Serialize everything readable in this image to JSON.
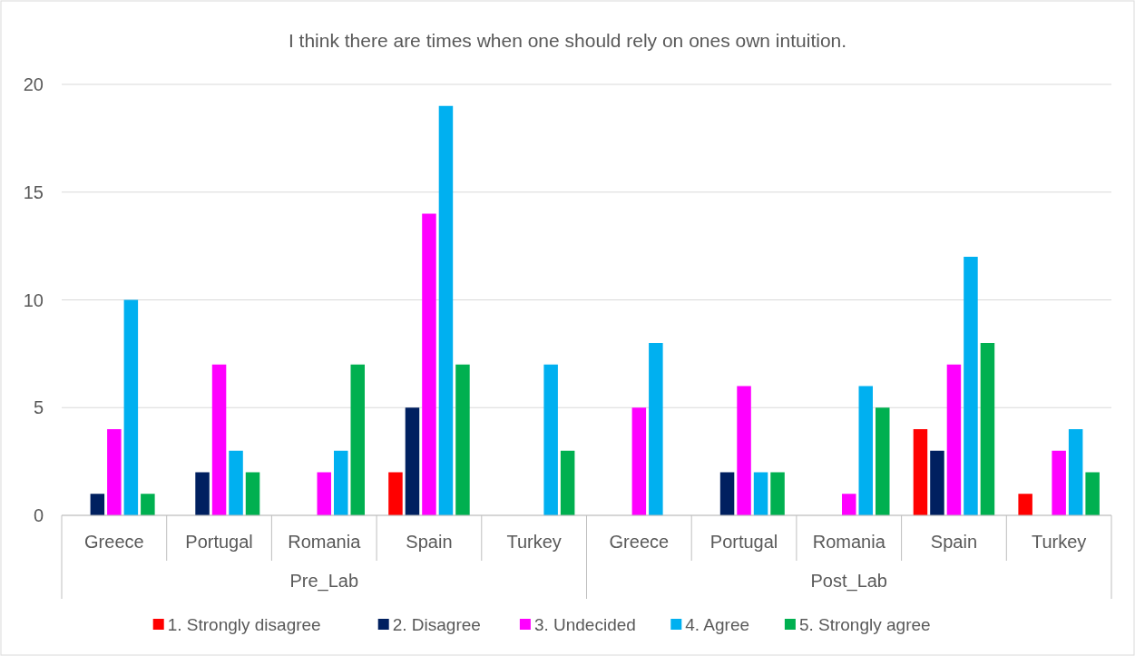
{
  "chart_data": {
    "type": "bar",
    "title": "I think there are times when one should rely on ones own intuition.",
    "categories": [
      "Greece",
      "Portugal",
      "Romania",
      "Spain",
      "Turkey",
      "Greece",
      "Portugal",
      "Romania",
      "Spain",
      "Turkey"
    ],
    "series": [
      {
        "name": "1. Strongly disagree",
        "color": "#ff0000",
        "values": [
          0,
          0,
          0,
          2,
          0,
          0,
          0,
          0,
          4,
          1
        ]
      },
      {
        "name": "2. Disagree",
        "color": "#002060",
        "values": [
          1,
          2,
          0,
          5,
          0,
          0,
          2,
          0,
          3,
          0
        ]
      },
      {
        "name": "3. Undecided",
        "color": "#ff00ff",
        "values": [
          4,
          7,
          2,
          14,
          0,
          5,
          6,
          1,
          7,
          3
        ]
      },
      {
        "name": "4. Agree",
        "color": "#00b0f0",
        "values": [
          10,
          3,
          3,
          19,
          7,
          8,
          2,
          6,
          12,
          4
        ]
      },
      {
        "name": "5. Strongly agree",
        "color": "#00b050",
        "values": [
          1,
          2,
          7,
          7,
          3,
          0,
          2,
          5,
          8,
          2
        ]
      }
    ],
    "annotations": [
      "Pre_Lab",
      "Post_Lab"
    ],
    "ylim": [
      0,
      20
    ],
    "yticks": [
      0,
      5,
      10,
      15,
      20
    ],
    "grid": "y",
    "legend": "bottom"
  }
}
